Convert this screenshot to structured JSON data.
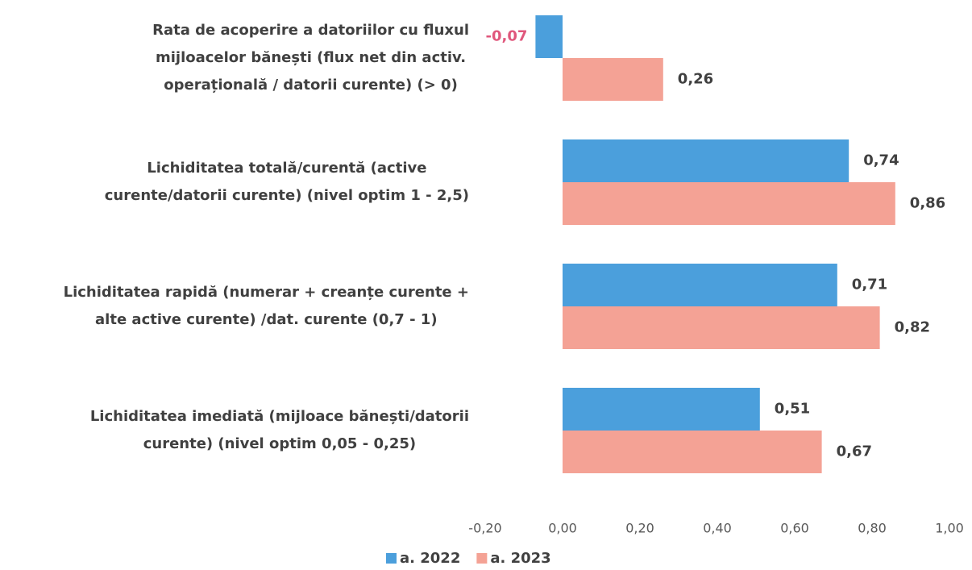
{
  "chart_data": {
    "type": "bar",
    "orientation": "horizontal",
    "categories": [
      [
        "Rata de acoperire a datoriilor cu fluxul",
        "mijloacelor bănești (flux net din activ.",
        "operațională / datorii curente) (> 0)"
      ],
      [
        "Lichiditatea totală/curentă (active",
        "curente/datorii curente) (nivel optim 1 - 2,5)"
      ],
      [
        "Lichiditatea rapidă (numerar + creanțe curente +",
        "alte active curente) /dat. curente (0,7 - 1)"
      ],
      [
        "Lichiditatea imediată (mijloace bănești/datorii",
        "curente) (nivel optim 0,05 - 0,25)"
      ]
    ],
    "series": [
      {
        "name": "a. 2022",
        "color": "#4b9fdc",
        "values": [
          -0.07,
          0.74,
          0.71,
          0.51
        ],
        "value_labels": [
          "-0,07",
          "0,74",
          "0,71",
          "0,51"
        ]
      },
      {
        "name": "a. 2023",
        "color": "#f4a295",
        "values": [
          0.26,
          0.86,
          0.82,
          0.67
        ],
        "value_labels": [
          "0,26",
          "0,86",
          "0,82",
          "0,67"
        ]
      }
    ],
    "negative_label_color": "#e0577c",
    "xlim": [
      -0.2,
      1.0
    ],
    "xticks": [
      {
        "value": -0.2,
        "label": "-0,20"
      },
      {
        "value": 0,
        "label": "0,00"
      },
      {
        "value": 0.2,
        "label": "0,20"
      },
      {
        "value": 0.4,
        "label": "0,40"
      },
      {
        "value": 0.6,
        "label": "0,60"
      },
      {
        "value": 0.8,
        "label": "0,80"
      },
      {
        "value": 1.0,
        "label": "1,00"
      }
    ],
    "grid": false,
    "legend": "bottom"
  }
}
